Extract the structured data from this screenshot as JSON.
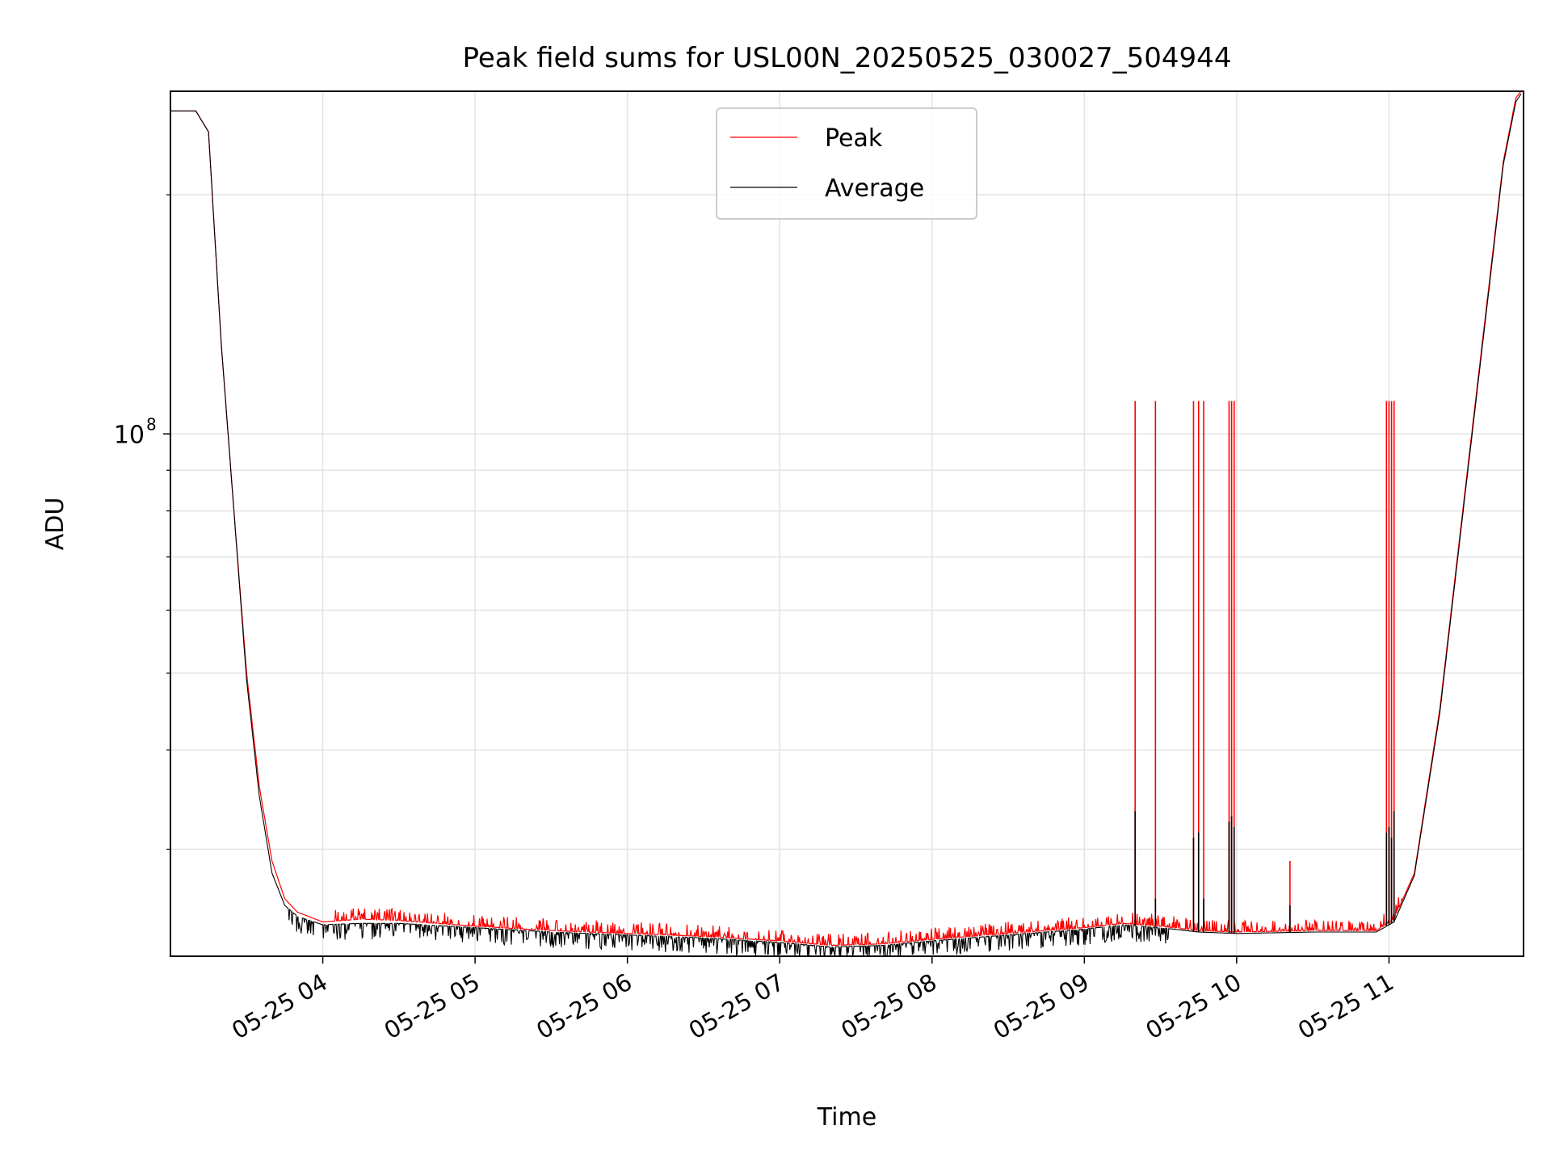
{
  "chart_data": {
    "type": "line",
    "title": "Peak field sums for USL00N_20250525_030027_504944",
    "xlabel": "Time",
    "ylabel": "ADU",
    "y_scale": "log",
    "ylim": [
      22000000,
      270000000
    ],
    "xlim": [
      "2025-05-25 03:00",
      "2025-05-25 11:53"
    ],
    "grid": true,
    "legend_position": "upper center",
    "x_ticks": [
      {
        "t": "2025-05-25 04:00",
        "label": "05-25 04"
      },
      {
        "t": "2025-05-25 05:00",
        "label": "05-25 05"
      },
      {
        "t": "2025-05-25 06:00",
        "label": "05-25 06"
      },
      {
        "t": "2025-05-25 07:00",
        "label": "05-25 07"
      },
      {
        "t": "2025-05-25 08:00",
        "label": "05-25 08"
      },
      {
        "t": "2025-05-25 09:00",
        "label": "05-25 09"
      },
      {
        "t": "2025-05-25 10:00",
        "label": "05-25 10"
      },
      {
        "t": "2025-05-25 11:00",
        "label": "05-25 11"
      }
    ],
    "y_major_ticks": [
      {
        "value": 100000000,
        "base": "10",
        "exp": "8"
      }
    ],
    "y_minor_ticks": [
      30000000,
      40000000,
      50000000,
      60000000,
      70000000,
      80000000,
      90000000,
      200000000
    ],
    "series": [
      {
        "name": "Peak",
        "color": "#ff0000",
        "x": [
          "2025-05-25 03:00",
          "2025-05-25 03:10",
          "2025-05-25 03:15",
          "2025-05-25 03:20",
          "2025-05-25 03:25",
          "2025-05-25 03:30",
          "2025-05-25 03:35",
          "2025-05-25 03:40",
          "2025-05-25 03:45",
          "2025-05-25 03:50",
          "2025-05-25 04:00",
          "2025-05-25 04:15",
          "2025-05-25 04:30",
          "2025-05-25 05:00",
          "2025-05-25 05:30",
          "2025-05-25 06:00",
          "2025-05-25 06:30",
          "2025-05-25 07:00",
          "2025-05-25 07:20",
          "2025-05-25 07:40",
          "2025-05-25 08:00",
          "2025-05-25 08:30",
          "2025-05-25 09:00",
          "2025-05-25 09:15",
          "2025-05-25 09:30",
          "2025-05-25 09:45",
          "2025-05-25 10:00",
          "2025-05-25 10:30",
          "2025-05-25 10:55",
          "2025-05-25 11:02",
          "2025-05-25 11:10",
          "2025-05-25 11:20",
          "2025-05-25 11:30",
          "2025-05-25 11:40",
          "2025-05-25 11:45",
          "2025-05-25 11:50",
          "2025-05-25 11:52"
        ],
        "values": [
          255000000,
          255000000,
          240000000,
          130000000,
          80000000,
          50000000,
          36000000,
          29000000,
          26000000,
          25000000,
          24300000,
          24500000,
          24400000,
          24000000,
          23700000,
          23500000,
          23300000,
          23000000,
          22700000,
          22800000,
          23100000,
          23500000,
          23900000,
          24200000,
          24000000,
          23700000,
          23600000,
          23700000,
          23700000,
          24500000,
          28000000,
          45000000,
          85000000,
          160000000,
          220000000,
          265000000,
          270000000
        ]
      },
      {
        "name": "Average",
        "color": "#000000",
        "x": [
          "2025-05-25 03:00",
          "2025-05-25 03:10",
          "2025-05-25 03:15",
          "2025-05-25 03:20",
          "2025-05-25 03:25",
          "2025-05-25 03:30",
          "2025-05-25 03:35",
          "2025-05-25 03:40",
          "2025-05-25 03:45",
          "2025-05-25 03:50",
          "2025-05-25 04:00",
          "2025-05-25 04:15",
          "2025-05-25 04:30",
          "2025-05-25 05:00",
          "2025-05-25 05:30",
          "2025-05-25 06:00",
          "2025-05-25 06:30",
          "2025-05-25 07:00",
          "2025-05-25 07:20",
          "2025-05-25 07:40",
          "2025-05-25 08:00",
          "2025-05-25 08:30",
          "2025-05-25 09:00",
          "2025-05-25 09:15",
          "2025-05-25 09:30",
          "2025-05-25 09:45",
          "2025-05-25 10:00",
          "2025-05-25 10:30",
          "2025-05-25 10:55",
          "2025-05-25 11:02",
          "2025-05-25 11:10",
          "2025-05-25 11:20",
          "2025-05-25 11:30",
          "2025-05-25 11:40",
          "2025-05-25 11:45",
          "2025-05-25 11:50",
          "2025-05-25 11:52"
        ],
        "values": [
          255000000,
          255000000,
          240000000,
          130000000,
          80000000,
          49000000,
          35000000,
          28000000,
          25500000,
          24700000,
          24100000,
          24200000,
          24200000,
          23900000,
          23600000,
          23400000,
          23200000,
          22900000,
          22600000,
          22700000,
          23000000,
          23400000,
          23800000,
          24100000,
          23900000,
          23600000,
          23500000,
          23600000,
          23600000,
          24300000,
          27800000,
          44500000,
          84000000,
          158000000,
          218000000,
          262000000,
          268000000
        ]
      }
    ],
    "spikes": [
      {
        "t": "2025-05-25 09:20",
        "peak": 110000000,
        "avg": 33500000
      },
      {
        "t": "2025-05-25 09:28",
        "peak": 110000000,
        "avg": 26000000
      },
      {
        "t": "2025-05-25 09:43",
        "peak": 110000000,
        "avg": 31000000
      },
      {
        "t": "2025-05-25 09:45",
        "peak": 110000000,
        "avg": 31500000
      },
      {
        "t": "2025-05-25 09:47",
        "peak": 110000000,
        "avg": 26000000
      },
      {
        "t": "2025-05-25 09:57",
        "peak": 110000000,
        "avg": 32500000
      },
      {
        "t": "2025-05-25 09:58",
        "peak": 110000000,
        "avg": 33000000
      },
      {
        "t": "2025-05-25 09:59",
        "peak": 110000000,
        "avg": 32000000
      },
      {
        "t": "2025-05-25 10:21",
        "peak": 29000000,
        "avg": 25500000
      },
      {
        "t": "2025-05-25 10:59",
        "peak": 110000000,
        "avg": 31500000
      },
      {
        "t": "2025-05-25 11:00",
        "peak": 110000000,
        "avg": 32000000
      },
      {
        "t": "2025-05-25 11:01",
        "peak": 110000000,
        "avg": 31000000
      },
      {
        "t": "2025-05-25 11:02",
        "peak": 110000000,
        "avg": 33500000
      }
    ]
  }
}
